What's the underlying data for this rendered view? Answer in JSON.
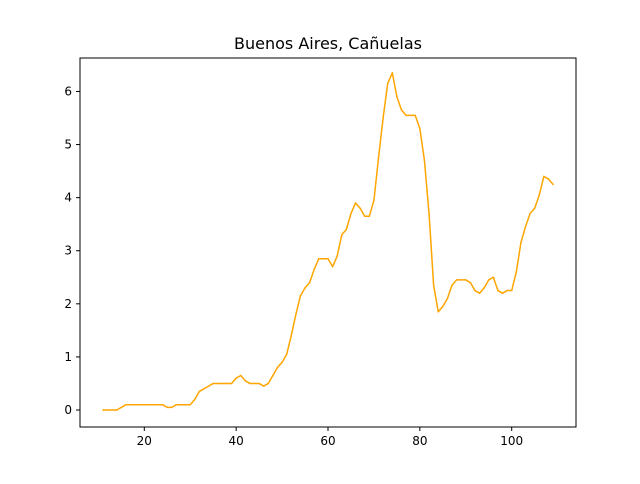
{
  "chart_data": {
    "type": "line",
    "title": "Buenos Aires, Cañuelas",
    "xlabel": "",
    "ylabel": "",
    "xlim": [
      6,
      114
    ],
    "ylim": [
      -0.32,
      6.63
    ],
    "x_ticks": [
      20,
      40,
      60,
      80,
      100
    ],
    "y_ticks": [
      0,
      1,
      2,
      3,
      4,
      5,
      6
    ],
    "grid": false,
    "legend": "none",
    "series": [
      {
        "color": "#FFA500",
        "x": [
          11,
          12,
          13,
          14,
          15,
          16,
          17,
          18,
          19,
          20,
          21,
          22,
          23,
          24,
          25,
          26,
          27,
          28,
          29,
          30,
          31,
          32,
          33,
          34,
          35,
          36,
          37,
          38,
          39,
          40,
          41,
          42,
          43,
          44,
          45,
          46,
          47,
          48,
          49,
          50,
          51,
          52,
          53,
          54,
          55,
          56,
          57,
          58,
          59,
          60,
          61,
          62,
          63,
          64,
          65,
          66,
          67,
          68,
          69,
          70,
          71,
          72,
          73,
          74,
          75,
          76,
          77,
          78,
          79,
          80,
          81,
          82,
          83,
          84,
          85,
          86,
          87,
          88,
          89,
          90,
          91,
          92,
          93,
          94,
          95,
          96,
          97,
          98,
          99,
          100,
          101,
          102,
          103,
          104,
          105,
          106,
          107,
          108,
          109
        ],
        "y": [
          0,
          0,
          0,
          0,
          0.05,
          0.1,
          0.1,
          0.1,
          0.1,
          0.1,
          0.1,
          0.1,
          0.1,
          0.1,
          0.05,
          0.05,
          0.1,
          0.1,
          0.1,
          0.1,
          0.2,
          0.35,
          0.4,
          0.45,
          0.5,
          0.5,
          0.5,
          0.5,
          0.5,
          0.6,
          0.65,
          0.55,
          0.5,
          0.5,
          0.5,
          0.45,
          0.5,
          0.65,
          0.8,
          0.9,
          1.05,
          1.4,
          1.8,
          2.15,
          2.3,
          2.4,
          2.65,
          2.85,
          2.85,
          2.85,
          2.7,
          2.9,
          3.3,
          3.4,
          3.7,
          3.9,
          3.8,
          3.65,
          3.65,
          3.95,
          4.75,
          5.5,
          6.15,
          6.35,
          5.9,
          5.65,
          5.55,
          5.55,
          5.55,
          5.3,
          4.7,
          3.7,
          2.35,
          1.85,
          1.95,
          2.1,
          2.35,
          2.45,
          2.45,
          2.45,
          2.4,
          2.25,
          2.2,
          2.3,
          2.45,
          2.5,
          2.25,
          2.2,
          2.25,
          2.25,
          2.6,
          3.15,
          3.45,
          3.7,
          3.8,
          4.05,
          4.4,
          4.35,
          4.25
        ]
      }
    ]
  }
}
